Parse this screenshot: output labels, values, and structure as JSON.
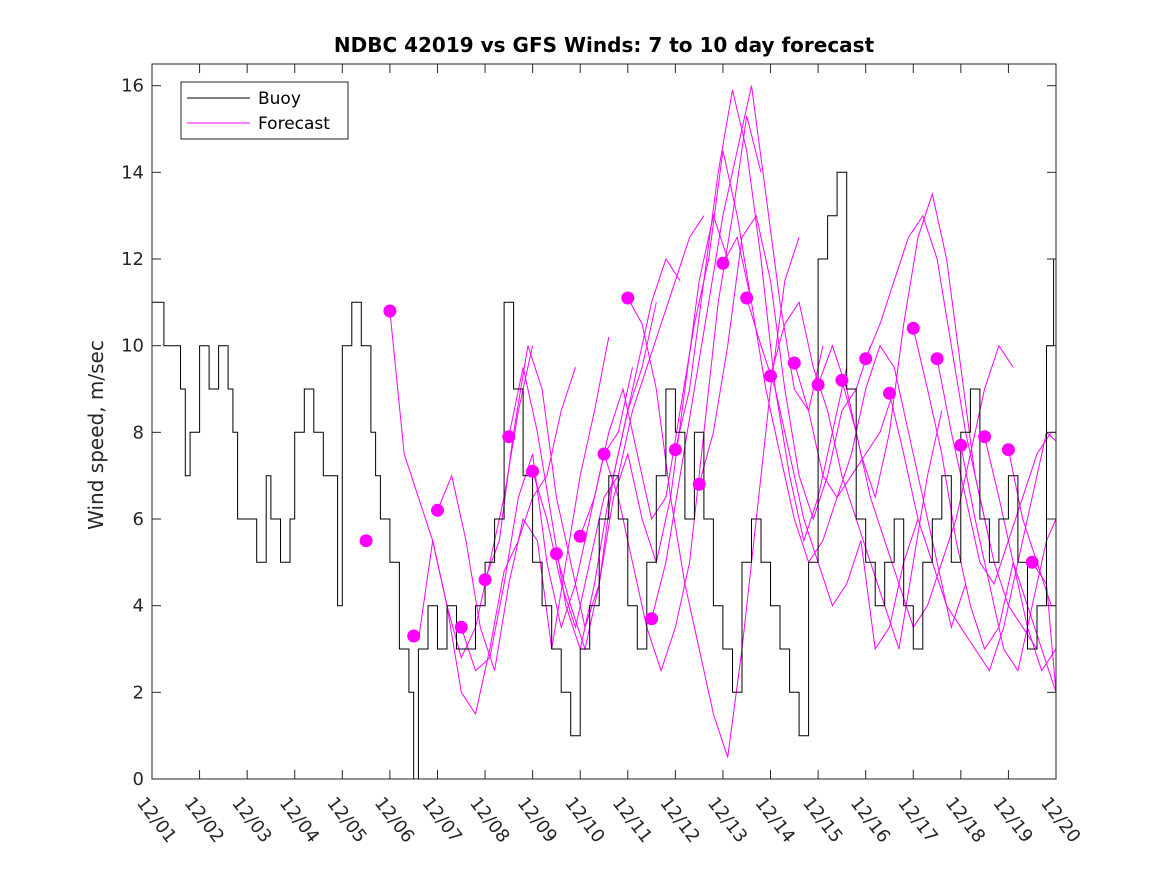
{
  "chart_data": {
    "type": "line",
    "title": "NDBC 42019 vs GFS Winds: 7 to 10 day forecast",
    "xlabel": "",
    "ylabel": "Wind speed, m/sec",
    "xlim": [
      0,
      19
    ],
    "ylim": [
      0,
      16.5
    ],
    "xticks": [
      {
        "day": 0,
        "label": "12/01"
      },
      {
        "day": 1,
        "label": "12/02"
      },
      {
        "day": 2,
        "label": "12/03"
      },
      {
        "day": 3,
        "label": "12/04"
      },
      {
        "day": 4,
        "label": "12/05"
      },
      {
        "day": 5,
        "label": "12/06"
      },
      {
        "day": 6,
        "label": "12/07"
      },
      {
        "day": 7,
        "label": "12/08"
      },
      {
        "day": 8,
        "label": "12/09"
      },
      {
        "day": 9,
        "label": "12/10"
      },
      {
        "day": 10,
        "label": "12/11"
      },
      {
        "day": 11,
        "label": "12/12"
      },
      {
        "day": 12,
        "label": "12/13"
      },
      {
        "day": 13,
        "label": "12/14"
      },
      {
        "day": 14,
        "label": "12/15"
      },
      {
        "day": 15,
        "label": "12/16"
      },
      {
        "day": 16,
        "label": "12/17"
      },
      {
        "day": 17,
        "label": "12/18"
      },
      {
        "day": 18,
        "label": "12/19"
      },
      {
        "day": 19,
        "label": "12/20"
      }
    ],
    "yticks": [
      0,
      2,
      4,
      6,
      8,
      10,
      12,
      14,
      16
    ],
    "legend": {
      "position": "top-left",
      "entries": [
        "Buoy",
        "Forecast"
      ]
    },
    "colors": {
      "buoy": "#000000",
      "forecast": "#ff00ff"
    },
    "buoy": {
      "name": "Buoy",
      "x": [
        0.0,
        0.25,
        0.5,
        0.6,
        0.7,
        0.8,
        1.0,
        1.2,
        1.4,
        1.6,
        1.7,
        1.8,
        2.0,
        2.2,
        2.4,
        2.5,
        2.7,
        2.9,
        3.0,
        3.2,
        3.4,
        3.6,
        3.8,
        3.9,
        4.0,
        4.2,
        4.4,
        4.6,
        4.7,
        4.8,
        5.0,
        5.2,
        5.4,
        5.5,
        5.6,
        5.8,
        6.0,
        6.2,
        6.4,
        6.6,
        6.8,
        7.0,
        7.2,
        7.4,
        7.6,
        7.8,
        8.0,
        8.2,
        8.4,
        8.6,
        8.8,
        9.0,
        9.2,
        9.4,
        9.6,
        9.8,
        10.0,
        10.2,
        10.4,
        10.6,
        10.8,
        11.0,
        11.2,
        11.4,
        11.6,
        11.8,
        12.0,
        12.2,
        12.4,
        12.6,
        12.8,
        13.0,
        13.2,
        13.4,
        13.6,
        13.8,
        14.0,
        14.2,
        14.4,
        14.6,
        14.8,
        15.0,
        15.2,
        15.4,
        15.6,
        15.8,
        16.0,
        16.2,
        16.4,
        16.6,
        16.8,
        17.0,
        17.2,
        17.4,
        17.6,
        17.8,
        18.0,
        18.2,
        18.4,
        18.6,
        18.8,
        18.95
      ],
      "y": [
        11,
        10,
        10,
        9,
        7,
        8,
        10,
        9,
        10,
        9,
        8,
        6,
        6,
        5,
        7,
        6,
        5,
        6,
        8,
        9,
        8,
        7,
        7,
        4,
        10,
        11,
        10,
        8,
        7,
        6,
        5,
        3,
        2,
        0,
        3,
        4,
        3,
        4,
        3,
        3,
        4,
        5,
        6,
        11,
        9,
        7,
        5,
        4,
        3,
        2,
        1,
        3,
        4,
        6,
        7,
        6,
        4,
        3,
        5,
        7,
        9,
        8,
        6,
        8,
        6,
        4,
        3,
        2,
        5,
        6,
        5,
        4,
        3,
        2,
        1,
        5,
        12,
        13,
        14,
        9,
        6,
        5,
        4,
        5,
        6,
        4,
        3,
        5,
        6,
        7,
        5,
        8,
        9,
        6,
        5,
        6,
        7,
        5,
        3,
        4,
        10,
        12
      ]
    },
    "forecasts": [
      {
        "x": [
          5.0,
          5.3,
          5.6,
          5.9,
          6.2,
          6.5,
          6.8,
          7.1,
          7.4,
          7.7,
          8.0
        ],
        "y": [
          10.8,
          7.5,
          6.5,
          5.5,
          4.0,
          2.8,
          3.5,
          5.0,
          6.5,
          8.5,
          10.0
        ]
      },
      {
        "x": [
          5.6,
          5.9,
          6.2,
          6.5,
          6.8,
          7.1,
          7.4,
          7.7,
          8.0,
          8.3,
          8.6,
          8.9
        ],
        "y": [
          3.2,
          5.5,
          4.0,
          2.0,
          1.5,
          3.0,
          4.8,
          5.5,
          6.5,
          7.0,
          8.5,
          9.5
        ]
      },
      {
        "x": [
          6.0,
          6.3,
          6.6,
          6.9,
          7.2,
          7.5,
          7.8,
          8.1,
          8.4,
          8.7,
          9.0,
          9.3,
          9.6
        ],
        "y": [
          6.2,
          7.0,
          5.5,
          3.5,
          2.5,
          4.5,
          6.0,
          5.5,
          3.0,
          5.0,
          7.0,
          8.5,
          10.2
        ]
      },
      {
        "x": [
          6.5,
          6.8,
          7.1,
          7.4,
          7.7,
          8.0,
          8.3,
          8.6,
          8.9,
          9.2,
          9.5,
          9.8,
          10.1
        ],
        "y": [
          3.5,
          2.5,
          2.8,
          4.5,
          6.5,
          7.5,
          5.0,
          3.5,
          4.5,
          6.0,
          7.5,
          8.0,
          9.5
        ]
      },
      {
        "x": [
          7.0,
          7.3,
          7.6,
          7.9,
          8.2,
          8.5,
          8.8,
          9.1,
          9.4,
          9.7,
          10.0,
          10.3,
          10.6
        ],
        "y": [
          4.6,
          5.5,
          8.0,
          10.0,
          9.0,
          6.5,
          5.0,
          3.5,
          4.5,
          7.0,
          8.5,
          9.5,
          11.0
        ]
      },
      {
        "x": [
          7.5,
          7.8,
          8.1,
          8.4,
          8.7,
          9.0,
          9.3,
          9.6,
          9.9,
          10.2,
          10.5,
          10.8,
          11.1
        ],
        "y": [
          7.9,
          9.5,
          8.0,
          6.0,
          4.0,
          3.0,
          4.5,
          6.5,
          8.0,
          9.5,
          11.0,
          12.0,
          11.5
        ]
      },
      {
        "x": [
          8.0,
          8.3,
          8.6,
          8.9,
          9.2,
          9.5,
          9.8,
          10.1,
          10.4,
          10.7,
          11.0,
          11.3,
          11.6
        ],
        "y": [
          7.1,
          6.0,
          4.5,
          3.5,
          5.0,
          6.5,
          7.0,
          8.5,
          9.5,
          10.5,
          11.5,
          12.5,
          13.0
        ]
      },
      {
        "x": [
          8.5,
          8.8,
          9.1,
          9.4,
          9.7,
          10.0,
          10.3,
          10.6,
          10.9,
          11.2,
          11.5,
          11.8,
          12.1
        ],
        "y": [
          5.2,
          4.0,
          3.0,
          4.5,
          6.5,
          7.5,
          6.0,
          5.0,
          6.5,
          9.0,
          11.5,
          13.0,
          12.0
        ]
      },
      {
        "x": [
          9.0,
          9.3,
          9.6,
          9.9,
          10.2,
          10.5,
          10.8,
          11.1,
          11.4,
          11.7,
          12.0,
          12.3,
          12.6
        ],
        "y": [
          5.6,
          6.5,
          8.0,
          9.0,
          7.5,
          6.0,
          6.5,
          8.5,
          10.5,
          12.0,
          14.5,
          13.0,
          11.0
        ]
      },
      {
        "x": [
          9.5,
          9.8,
          10.1,
          10.4,
          10.7,
          11.0,
          11.3,
          11.6,
          11.9,
          12.2,
          12.5,
          12.8
        ],
        "y": [
          7.5,
          6.5,
          5.0,
          3.5,
          2.5,
          3.5,
          5.0,
          8.0,
          11.0,
          13.0,
          15.3,
          14.0
        ]
      },
      {
        "x": [
          10.0,
          10.3,
          10.6,
          10.9,
          11.2,
          11.5,
          11.8,
          12.1,
          12.4,
          12.7,
          13.0,
          13.3,
          13.6
        ],
        "y": [
          11.1,
          10.5,
          9.0,
          6.5,
          4.5,
          3.0,
          1.5,
          0.5,
          3.0,
          6.0,
          9.0,
          11.5,
          12.5
        ]
      },
      {
        "x": [
          10.5,
          10.8,
          11.1,
          11.4,
          11.7,
          12.0,
          12.3,
          12.6,
          12.9,
          13.2,
          13.5,
          13.8,
          14.1
        ],
        "y": [
          3.7,
          5.0,
          7.0,
          9.0,
          11.0,
          13.0,
          14.5,
          16.0,
          13.5,
          11.0,
          9.0,
          8.5,
          10.0
        ]
      },
      {
        "x": [
          11.0,
          11.3,
          11.6,
          11.9,
          12.2,
          12.5,
          12.8,
          13.1,
          13.4,
          13.7,
          14.0,
          14.3,
          14.6
        ],
        "y": [
          7.6,
          9.0,
          11.5,
          14.0,
          15.9,
          14.5,
          12.0,
          9.0,
          7.0,
          5.5,
          6.5,
          8.0,
          9.5
        ]
      },
      {
        "x": [
          11.5,
          11.8,
          12.1,
          12.4,
          12.7,
          13.0,
          13.3,
          13.6,
          13.9,
          14.2,
          14.5,
          14.8,
          15.1
        ],
        "y": [
          6.8,
          8.0,
          10.0,
          12.5,
          13.0,
          11.5,
          9.0,
          7.0,
          6.0,
          7.0,
          8.5,
          9.0,
          10.0
        ]
      },
      {
        "x": [
          12.0,
          12.3,
          12.6,
          12.9,
          13.2,
          13.5,
          13.8,
          14.1,
          14.4,
          14.7,
          15.0,
          15.3,
          15.6
        ],
        "y": [
          11.9,
          12.5,
          11.0,
          9.0,
          7.5,
          6.0,
          5.0,
          5.5,
          6.5,
          7.0,
          7.5,
          8.0,
          9.0
        ]
      },
      {
        "x": [
          12.5,
          12.8,
          13.1,
          13.4,
          13.7,
          14.0,
          14.3,
          14.6,
          14.9,
          15.2,
          15.5,
          15.8,
          16.1
        ],
        "y": [
          11.1,
          10.0,
          9.0,
          7.5,
          6.0,
          5.0,
          4.0,
          4.5,
          5.5,
          3.0,
          3.5,
          5.0,
          6.0
        ]
      },
      {
        "x": [
          13.0,
          13.3,
          13.6,
          13.9,
          14.2,
          14.5,
          14.8,
          15.1,
          15.4,
          15.7,
          16.0,
          16.3,
          16.6
        ],
        "y": [
          9.3,
          10.5,
          11.0,
          9.5,
          8.5,
          7.0,
          6.0,
          5.0,
          4.0,
          3.0,
          5.0,
          7.0,
          8.5
        ]
      },
      {
        "x": [
          13.5,
          13.8,
          14.1,
          14.4,
          14.7,
          15.0,
          15.3,
          15.6,
          15.9,
          16.2,
          16.5,
          16.8,
          17.1
        ],
        "y": [
          9.6,
          8.5,
          7.0,
          6.5,
          7.5,
          9.0,
          10.0,
          9.5,
          8.0,
          6.5,
          5.0,
          3.5,
          4.5
        ]
      },
      {
        "x": [
          14.0,
          14.3,
          14.6,
          14.9,
          15.2,
          15.5,
          15.8,
          16.1,
          16.4,
          16.7,
          17.0,
          17.3,
          17.6
        ],
        "y": [
          9.1,
          10.0,
          9.0,
          7.5,
          6.5,
          8.0,
          10.5,
          12.5,
          13.5,
          12.0,
          9.5,
          7.0,
          5.5
        ]
      },
      {
        "x": [
          14.5,
          14.8,
          15.1,
          15.4,
          15.7,
          16.0,
          16.3,
          16.6,
          16.9,
          17.2,
          17.5,
          17.8,
          18.1
        ],
        "y": [
          9.2,
          8.0,
          6.5,
          5.5,
          4.5,
          3.5,
          4.0,
          5.0,
          6.0,
          7.5,
          9.0,
          10.0,
          9.5
        ]
      },
      {
        "x": [
          15.0,
          15.3,
          15.6,
          15.9,
          16.2,
          16.5,
          16.8,
          17.1,
          17.4,
          17.7,
          18.0,
          18.3,
          18.6
        ],
        "y": [
          9.7,
          10.5,
          11.5,
          12.5,
          13.0,
          12.0,
          10.0,
          8.0,
          6.5,
          5.0,
          4.0,
          3.5,
          3.0
        ]
      },
      {
        "x": [
          15.5,
          15.8,
          16.1,
          16.4,
          16.7,
          17.0,
          17.3,
          17.6,
          17.9,
          18.2,
          18.5,
          18.8,
          19.0
        ],
        "y": [
          8.9,
          7.5,
          6.0,
          5.0,
          4.0,
          3.5,
          3.0,
          2.5,
          3.5,
          5.0,
          6.5,
          8.0,
          7.8
        ]
      },
      {
        "x": [
          16.0,
          16.3,
          16.6,
          16.9,
          17.2,
          17.5,
          17.8,
          18.1,
          18.4,
          18.7,
          19.0
        ],
        "y": [
          10.4,
          9.0,
          7.5,
          5.5,
          4.0,
          3.0,
          3.5,
          5.0,
          4.0,
          3.0,
          2.0
        ]
      },
      {
        "x": [
          16.5,
          16.8,
          17.1,
          17.4,
          17.7,
          18.0,
          18.3,
          18.6,
          18.9,
          19.0
        ],
        "y": [
          9.7,
          8.0,
          6.5,
          5.0,
          4.5,
          5.5,
          6.5,
          7.5,
          8.0,
          8.0
        ]
      },
      {
        "x": [
          17.0,
          17.3,
          17.6,
          17.9,
          18.2,
          18.5,
          18.8,
          19.0
        ],
        "y": [
          7.7,
          6.0,
          4.5,
          3.0,
          2.5,
          4.0,
          5.5,
          6.0
        ]
      },
      {
        "x": [
          17.5,
          17.8,
          18.1,
          18.4,
          18.7,
          19.0
        ],
        "y": [
          7.9,
          6.5,
          5.0,
          3.5,
          2.5,
          3.0
        ]
      },
      {
        "x": [
          18.0,
          18.3,
          18.6,
          18.9,
          19.0
        ],
        "y": [
          7.6,
          6.0,
          5.0,
          4.0,
          4.0
        ]
      },
      {
        "x": [
          18.5,
          18.8,
          19.0
        ],
        "y": [
          5.0,
          4.5,
          2.0
        ]
      }
    ],
    "markers": {
      "x": [
        4.5,
        5.0,
        5.5,
        6.0,
        6.5,
        7.0,
        7.5,
        8.0,
        8.5,
        9.0,
        9.5,
        10.0,
        10.5,
        11.0,
        11.5,
        12.0,
        12.5,
        13.0,
        13.5,
        14.0,
        14.5,
        15.0,
        15.5,
        16.0,
        16.5,
        17.0,
        17.5,
        18.0,
        18.5
      ],
      "y": [
        5.5,
        10.8,
        3.3,
        6.2,
        3.5,
        4.6,
        7.9,
        7.1,
        5.2,
        5.6,
        7.5,
        11.1,
        3.7,
        7.6,
        6.8,
        11.9,
        11.1,
        9.3,
        9.6,
        9.1,
        9.2,
        9.7,
        8.9,
        10.4,
        9.7,
        7.7,
        7.9,
        7.6,
        5.0
      ]
    }
  }
}
